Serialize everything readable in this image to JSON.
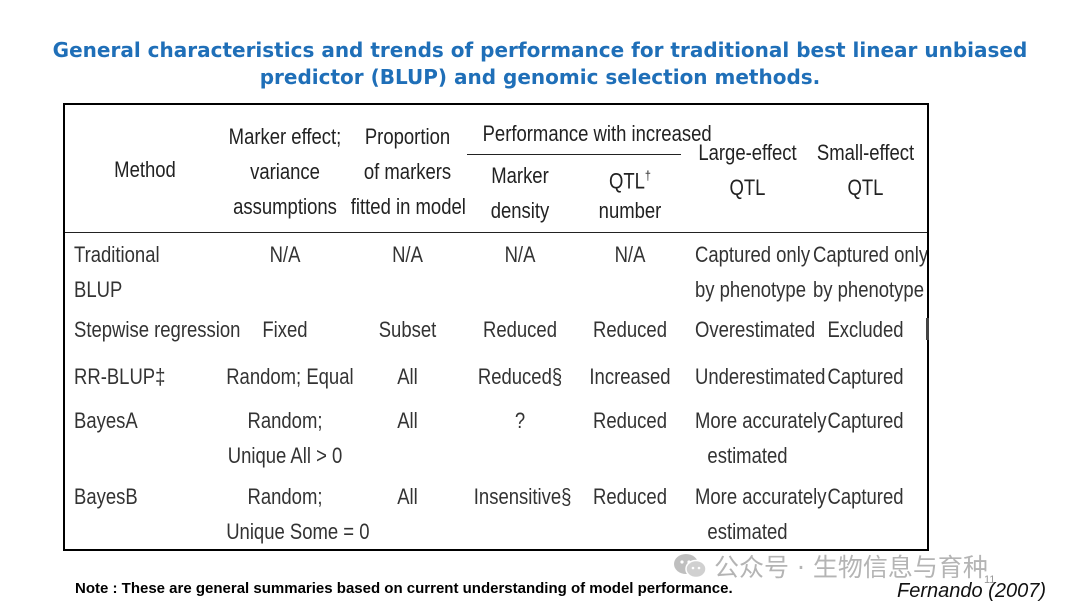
{
  "title": "General characteristics and trends of performance for traditional best linear unbiased predictor (BLUP) and genomic selection methods.",
  "headers": {
    "method": "Method",
    "marker_effect": [
      "Marker effect;",
      "variance",
      "assumptions"
    ],
    "proportion": [
      "Proportion",
      "of markers",
      "fitted in model"
    ],
    "perf_group": "Performance with increased",
    "marker_density": [
      "Marker",
      "density"
    ],
    "qtl_number": [
      "QTL",
      "number"
    ],
    "qtl_number_sup": "†",
    "large_effect": [
      "Large-effect",
      "QTL"
    ],
    "small_effect": [
      "Small-effect",
      "QTL"
    ]
  },
  "rows": [
    {
      "method": [
        "Traditional",
        "BLUP"
      ],
      "marker_effect": [
        "N/A"
      ],
      "proportion": "N/A",
      "marker_density": "N/A",
      "qtl_number": "N/A",
      "large_effect": [
        "Captured only",
        "by phenotype"
      ],
      "small_effect": [
        "Captured only",
        "by phenotype"
      ]
    },
    {
      "method": [
        "Stepwise regression"
      ],
      "marker_effect": [
        "Fixed"
      ],
      "proportion": "Subset",
      "marker_density": "Reduced",
      "qtl_number": "Reduced",
      "large_effect": [
        "Overestimated"
      ],
      "small_effect": [
        "Excluded"
      ]
    },
    {
      "method": [
        "RR-BLUP‡"
      ],
      "marker_effect": [
        "Random; Equal"
      ],
      "proportion": "All",
      "marker_density": "Reduced§",
      "qtl_number": "Increased",
      "large_effect": [
        "Underestimated"
      ],
      "small_effect": [
        "Captured"
      ]
    },
    {
      "method": [
        "BayesA"
      ],
      "marker_effect": [
        "Random;",
        "Unique All > 0"
      ],
      "proportion": "All",
      "marker_density": "?",
      "qtl_number": "Reduced",
      "large_effect": [
        "More accurately",
        "estimated"
      ],
      "small_effect": [
        "Captured"
      ]
    },
    {
      "method": [
        "BayesB"
      ],
      "marker_effect": [
        "Random;",
        "Unique Some = 0"
      ],
      "proportion": "All",
      "marker_density": "Insensitive§",
      "qtl_number": "Reduced",
      "large_effect": [
        "More accurately",
        "estimated"
      ],
      "small_effect": [
        "Captured"
      ]
    }
  ],
  "note": "Note : These are general summaries based on current understanding of model  performance.",
  "citation": "Fernando (2007)",
  "watermark": "公众号 · 生物信息与育种",
  "page_number": "11",
  "icons": {
    "watermark_icon": "wechat-icon"
  },
  "colors": {
    "title": "#1f6fb8",
    "watermark": "#a8a8a8"
  }
}
